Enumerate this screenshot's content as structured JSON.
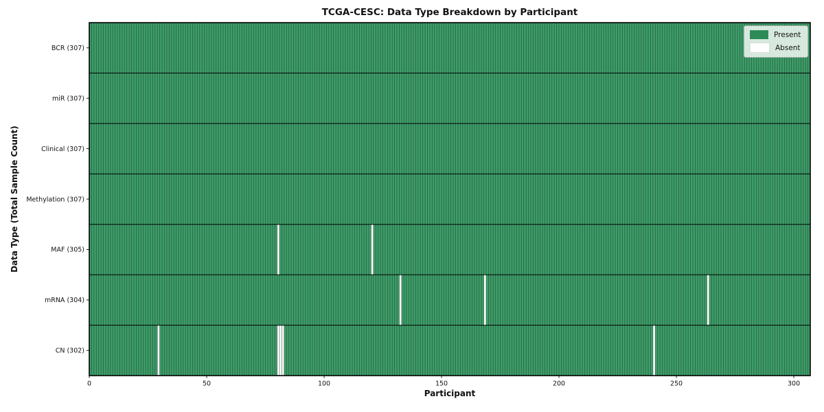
{
  "header": {
    "title": "TCGA-CESC: Data Type Breakdown by Participant"
  },
  "chart_data": {
    "type": "heatmap",
    "title": "TCGA-CESC: Data Type Breakdown by Participant",
    "xlabel": "Participant",
    "ylabel": "Data Type (Total Sample Count)",
    "x_ticks": [
      0,
      50,
      100,
      150,
      200,
      250,
      300
    ],
    "x_range": [
      0,
      307
    ],
    "n_participants": 307,
    "grid": "cell-edges-on",
    "legend": {
      "position": "upper right",
      "entries": [
        {
          "label": "Present",
          "color": "#2e8b57"
        },
        {
          "label": "Absent",
          "color": "#ffffff"
        }
      ]
    },
    "rows": [
      {
        "label": "BCR (307)",
        "data_type": "BCR",
        "present_count": 307,
        "absent_participants": []
      },
      {
        "label": "miR (307)",
        "data_type": "miR",
        "present_count": 307,
        "absent_participants": []
      },
      {
        "label": "Clinical (307)",
        "data_type": "Clinical",
        "present_count": 307,
        "absent_participants": []
      },
      {
        "label": "Methylation (307)",
        "data_type": "Methylation",
        "present_count": 307,
        "absent_participants": []
      },
      {
        "label": "MAF (305)",
        "data_type": "MAF",
        "present_count": 305,
        "absent_participants": [
          80,
          120
        ]
      },
      {
        "label": "mRNA (304)",
        "data_type": "mRNA",
        "present_count": 304,
        "absent_participants": [
          132,
          168,
          263
        ]
      },
      {
        "label": "CN (302)",
        "data_type": "CN",
        "present_count": 302,
        "absent_participants": [
          29,
          80,
          81,
          82,
          240
        ]
      }
    ],
    "colors": {
      "present": "#2e8b57",
      "cell_fill": "#3f9e6a",
      "cell_edge": "#123a25",
      "absent": "#ffffff",
      "row_divider": "#000000",
      "plot_border": "#000000",
      "legend_bg": "rgba(255,255,255,0.8)"
    }
  }
}
